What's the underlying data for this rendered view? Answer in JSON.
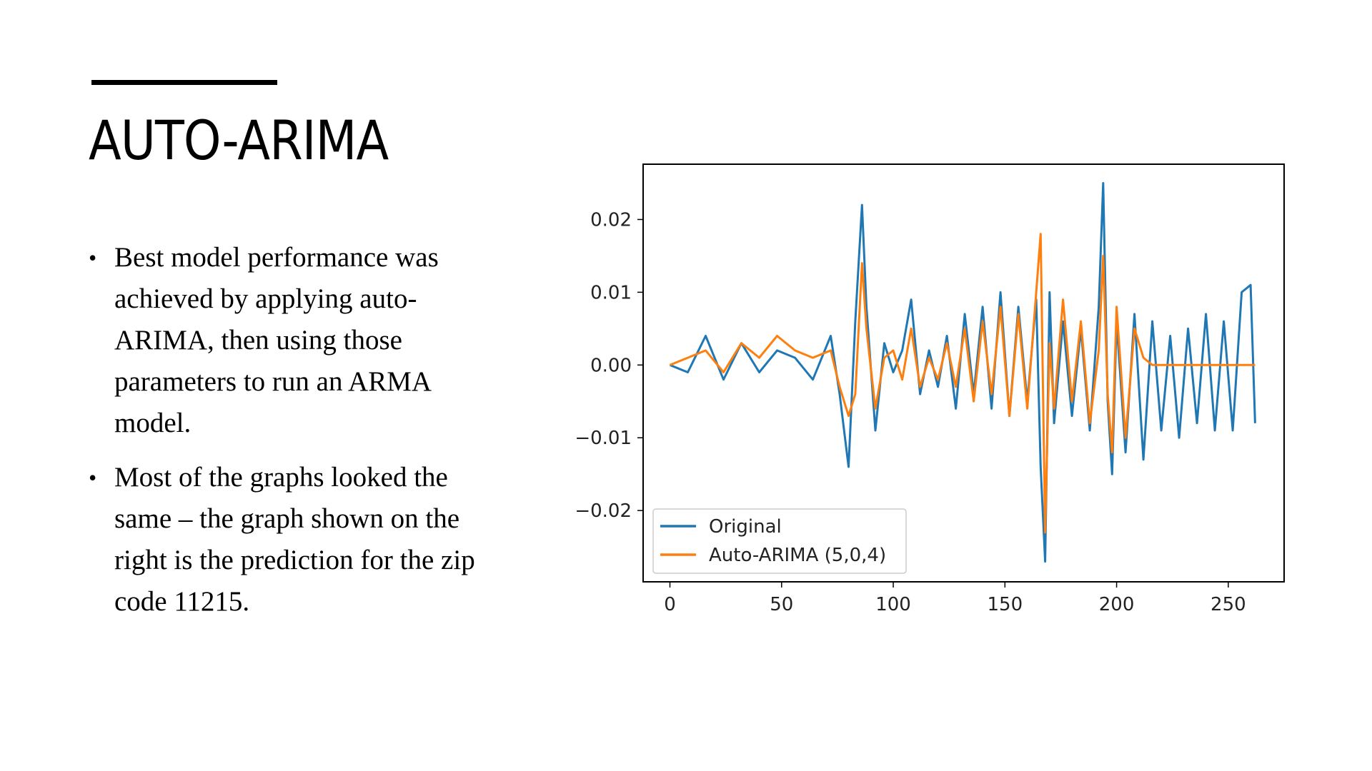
{
  "slide": {
    "title": "AUTO-ARIMA",
    "bullets": [
      "Best model performance was achieved by applying auto-ARIMA, then using those parameters to run an ARMA model.",
      "Most of the graphs looked the same – the graph shown on the right is the prediction for the zip code 11215."
    ]
  },
  "chart_data": {
    "type": "line",
    "title": "",
    "xlabel": "",
    "ylabel": "",
    "xlim": [
      -12,
      275
    ],
    "ylim": [
      -0.0298,
      0.0276
    ],
    "xticks": [
      0,
      50,
      100,
      150,
      200,
      250
    ],
    "xtick_labels": [
      "0",
      "50",
      "100",
      "150",
      "200",
      "250"
    ],
    "yticks": [
      -0.02,
      -0.01,
      0.0,
      0.01,
      0.02
    ],
    "ytick_labels": [
      "−0.02",
      "−0.01",
      "0.00",
      "0.01",
      "0.02"
    ],
    "grid": false,
    "legend_position": "lower-left",
    "x": [
      0,
      8,
      16,
      24,
      32,
      40,
      48,
      56,
      64,
      72,
      76,
      80,
      83,
      86,
      88,
      92,
      96,
      100,
      104,
      108,
      112,
      116,
      120,
      124,
      128,
      132,
      136,
      140,
      144,
      148,
      152,
      156,
      160,
      164,
      166,
      168,
      170,
      172,
      176,
      180,
      184,
      188,
      192,
      194,
      196,
      198,
      200,
      204,
      208,
      212,
      216,
      220,
      224,
      228,
      232,
      236,
      240,
      244,
      248,
      252,
      256,
      260,
      262
    ],
    "series": [
      {
        "name": "Original",
        "color": "#1f77b4",
        "values": [
          0.0,
          -0.001,
          0.004,
          -0.002,
          0.003,
          -0.001,
          0.002,
          0.001,
          -0.002,
          0.004,
          -0.004,
          -0.014,
          0.006,
          0.022,
          0.008,
          -0.009,
          0.003,
          -0.001,
          0.002,
          0.009,
          -0.004,
          0.002,
          -0.003,
          0.004,
          -0.006,
          0.007,
          -0.004,
          0.008,
          -0.006,
          0.01,
          -0.007,
          0.008,
          -0.005,
          0.009,
          -0.014,
          -0.027,
          0.01,
          -0.008,
          0.006,
          -0.007,
          0.005,
          -0.009,
          0.008,
          0.025,
          -0.005,
          -0.015,
          0.006,
          -0.012,
          0.007,
          -0.013,
          0.006,
          -0.009,
          0.004,
          -0.01,
          0.005,
          -0.008,
          0.007,
          -0.009,
          0.006,
          -0.009,
          0.01,
          0.011,
          -0.008
        ]
      },
      {
        "name": "Auto-ARIMA (5,0,4)",
        "color": "#ff7f0e",
        "values": [
          0.0,
          0.001,
          0.002,
          -0.001,
          0.003,
          0.001,
          0.004,
          0.002,
          0.001,
          0.002,
          -0.003,
          -0.007,
          -0.004,
          0.014,
          0.005,
          -0.006,
          0.001,
          0.002,
          -0.002,
          0.005,
          -0.003,
          0.001,
          -0.002,
          0.003,
          -0.003,
          0.005,
          -0.005,
          0.006,
          -0.004,
          0.008,
          -0.007,
          0.007,
          -0.006,
          0.01,
          0.018,
          -0.023,
          0.003,
          -0.006,
          0.009,
          -0.005,
          0.006,
          -0.008,
          0.002,
          0.015,
          -0.004,
          -0.012,
          0.008,
          -0.01,
          0.005,
          0.001,
          0.0,
          0.0,
          0.0,
          0.0,
          0.0,
          0.0,
          0.0,
          0.0,
          0.0,
          0.0,
          0.0,
          0.0,
          0.0
        ]
      }
    ]
  }
}
